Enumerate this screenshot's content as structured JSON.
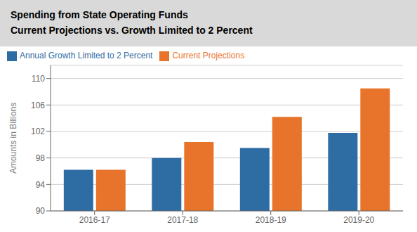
{
  "chart_data": {
    "type": "bar",
    "title": "Spending from State Operating Funds",
    "subtitle": "Current Projections vs. Growth Limited to 2 Percent",
    "categories": [
      "2016-17",
      "2017-18",
      "2018-19",
      "2019-20"
    ],
    "series": [
      {
        "name": "Annual Growth Limited to 2 Percent",
        "color": "#2E6DA4",
        "values": [
          96.2,
          98.0,
          99.5,
          101.8
        ]
      },
      {
        "name": "Current Projections",
        "color": "#E8732A",
        "values": [
          96.2,
          100.4,
          104.2,
          108.5
        ]
      }
    ],
    "ylabel": "Amounts in Billions",
    "ylim": [
      90,
      112
    ],
    "yticks": [
      90,
      94,
      98,
      102,
      106,
      110
    ],
    "grid": true,
    "legend": "upper left"
  }
}
